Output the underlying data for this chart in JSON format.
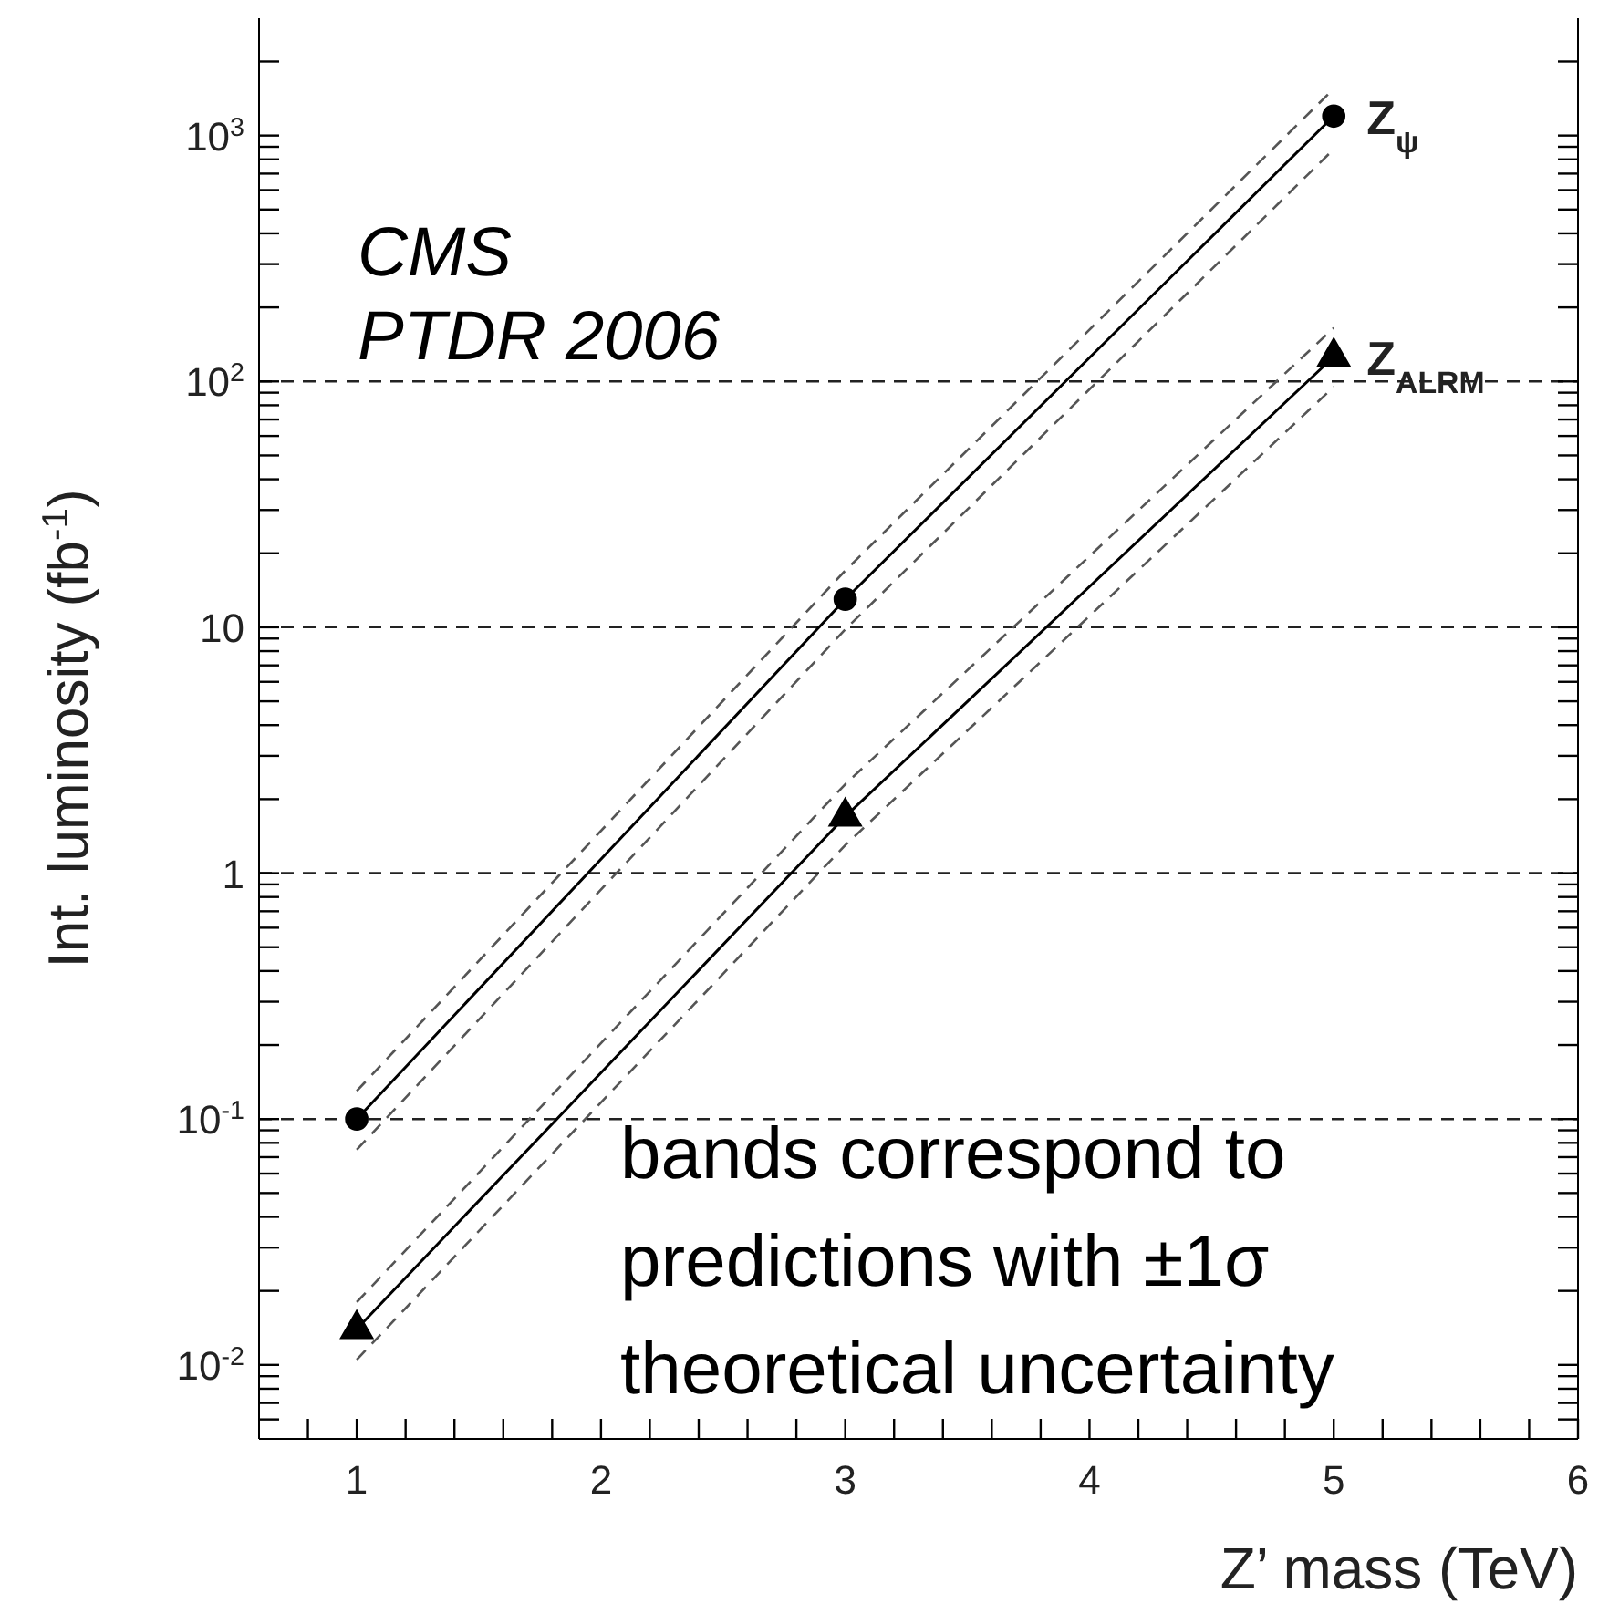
{
  "chart_data": {
    "type": "line",
    "xlabel": "Z’ mass (TeV)",
    "ylabel": "Int. luminosity (fb$^{-1}$)",
    "annotations": [
      "CMS\nPTDR 2006",
      "bands correspond to\npredictions with ±1σ\ntheoretical uncertainty"
    ],
    "x": [
      1,
      3,
      5
    ],
    "series": [
      {
        "name": "Z$_{ψ}$",
        "color": "#000000",
        "marker": "circle",
        "values": [
          0.1,
          13,
          1200
        ]
      },
      {
        "color": "#555555",
        "marker": "none",
        "line_style": "dashed",
        "values": [
          0.075,
          9.8,
          880
        ]
      },
      {
        "color": "#555555",
        "marker": "none",
        "line_style": "dashed",
        "values": [
          0.13,
          17,
          1550
        ]
      },
      {
        "name": "Z$_{ALRM}$",
        "color": "#000000",
        "marker": "triangle",
        "values": [
          0.014,
          1.7,
          126
        ]
      },
      {
        "color": "#555555",
        "marker": "none",
        "line_style": "dashed",
        "values": [
          0.0105,
          1.3,
          95
        ]
      },
      {
        "color": "#555555",
        "marker": "none",
        "line_style": "dashed",
        "values": [
          0.018,
          2.3,
          165
        ]
      }
    ],
    "log": "y",
    "legend": "right",
    "grid": false,
    "line_style": "solid",
    "xlim": [
      0.6,
      6
    ],
    "ylim": [
      0.005,
      3000
    ],
    "xticks": [
      {
        "value": 0.8,
        "label": null
      },
      1,
      {
        "value": 1.2,
        "label": null
      },
      {
        "value": 1.4,
        "label": null
      },
      {
        "value": 1.6,
        "label": null
      },
      {
        "value": 1.8,
        "label": null
      },
      2,
      {
        "value": 2.2,
        "label": null
      },
      {
        "value": 2.4,
        "label": null
      },
      {
        "value": 2.6,
        "label": null
      },
      {
        "value": 2.8,
        "label": null
      },
      3,
      {
        "value": 3.2,
        "label": null
      },
      {
        "value": 3.4,
        "label": null
      },
      {
        "value": 3.6,
        "label": null
      },
      {
        "value": 3.8,
        "label": null
      },
      4,
      {
        "value": 4.2,
        "label": null
      },
      {
        "value": 4.4,
        "label": null
      },
      {
        "value": 4.6,
        "label": null
      },
      {
        "value": 4.8,
        "label": null
      },
      5,
      {
        "value": 5.2,
        "label": null
      },
      {
        "value": 5.4,
        "label": null
      },
      {
        "value": 5.6,
        "label": null
      },
      {
        "value": 5.8,
        "label": null
      },
      6
    ],
    "yticks": [
      {
        "value": 0.006,
        "label": null
      },
      {
        "value": 0.007,
        "label": null
      },
      {
        "value": 0.008,
        "label": null
      },
      {
        "value": 0.009,
        "label": null
      },
      {
        "value": 0.01,
        "label": "10$^{-2}$"
      },
      {
        "value": 0.02,
        "label": null
      },
      {
        "value": 0.03,
        "label": null
      },
      {
        "value": 0.04,
        "label": null
      },
      {
        "value": 0.05,
        "label": null
      },
      {
        "value": 0.06,
        "label": null
      },
      {
        "value": 0.07,
        "label": null
      },
      {
        "value": 0.08,
        "label": null
      },
      {
        "value": 0.09,
        "label": null
      },
      {
        "value": 0.1,
        "label": "10$^{-1}$"
      },
      {
        "value": 0.2,
        "label": null
      },
      {
        "value": 0.3,
        "label": null
      },
      {
        "value": 0.4,
        "label": null
      },
      {
        "value": 0.5,
        "label": null
      },
      {
        "value": 0.6,
        "label": null
      },
      {
        "value": 0.7,
        "label": null
      },
      {
        "value": 0.8,
        "label": null
      },
      {
        "value": 0.9,
        "label": null
      },
      1,
      {
        "value": 2,
        "label": null
      },
      {
        "value": 3,
        "label": null
      },
      {
        "value": 4,
        "label": null
      },
      {
        "value": 5,
        "label": null
      },
      {
        "value": 6,
        "label": null
      },
      {
        "value": 7,
        "label": null
      },
      {
        "value": 8,
        "label": null
      },
      {
        "value": 9,
        "label": null
      },
      10,
      {
        "value": 20,
        "label": null
      },
      {
        "value": 30,
        "label": null
      },
      {
        "value": 40,
        "label": null
      },
      {
        "value": 50,
        "label": null
      },
      {
        "value": 60,
        "label": null
      },
      {
        "value": 70,
        "label": null
      },
      {
        "value": 80,
        "label": null
      },
      {
        "value": 90,
        "label": null
      },
      {
        "value": 100,
        "label": "10$^{2}$"
      },
      {
        "value": 200,
        "label": null
      },
      {
        "value": 300,
        "label": null
      },
      {
        "value": 400,
        "label": null
      },
      {
        "value": 500,
        "label": null
      },
      {
        "value": 600,
        "label": null
      },
      {
        "value": 700,
        "label": null
      },
      {
        "value": 800,
        "label": null
      },
      {
        "value": 900,
        "label": null
      },
      {
        "value": 1000,
        "label": "10$^{3}$"
      },
      {
        "value": 2000,
        "label": null
      }
    ],
    "ref_lines": [
      {
        "axis": "y",
        "value": 100,
        "line_style": "dashed"
      },
      {
        "axis": "y",
        "value": 10,
        "line_style": "dashed"
      },
      {
        "axis": "y",
        "value": 1,
        "line_style": "dashed"
      },
      {
        "axis": "y",
        "value": 0.1,
        "line_style": "dashed"
      }
    ]
  }
}
